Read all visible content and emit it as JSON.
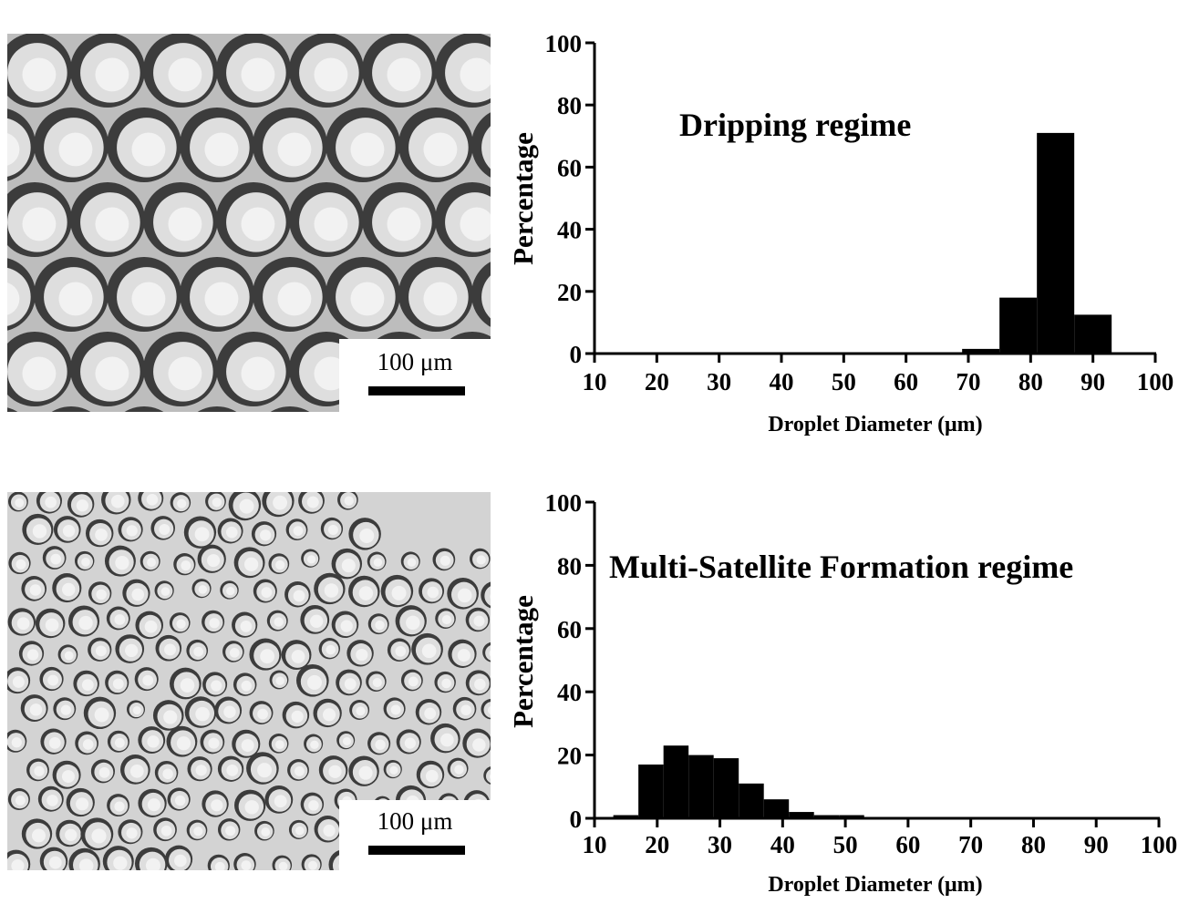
{
  "panels": [
    {
      "micrograph": {
        "scale_label": "100 μm"
      },
      "chart_data": {
        "type": "bar",
        "title": "Dripping regime",
        "xlabel": "Droplet Diameter (μm)",
        "ylabel": "Percentage",
        "xlim": [
          10,
          100
        ],
        "ylim": [
          0,
          100
        ],
        "xticks": [
          10,
          20,
          30,
          40,
          50,
          60,
          70,
          80,
          90,
          100
        ],
        "yticks": [
          0,
          20,
          40,
          60,
          80,
          100
        ],
        "bins": [
          {
            "from": 69,
            "to": 75,
            "value": 1.5
          },
          {
            "from": 75,
            "to": 81,
            "value": 18
          },
          {
            "from": 81,
            "to": 87,
            "value": 71
          },
          {
            "from": 87,
            "to": 93,
            "value": 12.5
          }
        ]
      }
    },
    {
      "micrograph": {
        "scale_label": "100 μm"
      },
      "chart_data": {
        "type": "bar",
        "title": "Multi-Satellite Formation regime",
        "xlabel": "Droplet Diameter (μm)",
        "ylabel": "Percentage",
        "xlim": [
          10,
          100
        ],
        "ylim": [
          0,
          100
        ],
        "xticks": [
          10,
          20,
          30,
          40,
          50,
          60,
          70,
          80,
          90,
          100
        ],
        "yticks": [
          0,
          20,
          40,
          60,
          80,
          100
        ],
        "bins": [
          {
            "from": 13,
            "to": 17,
            "value": 1
          },
          {
            "from": 17,
            "to": 21,
            "value": 17
          },
          {
            "from": 21,
            "to": 25,
            "value": 23
          },
          {
            "from": 25,
            "to": 29,
            "value": 20
          },
          {
            "from": 29,
            "to": 33,
            "value": 19
          },
          {
            "from": 33,
            "to": 37,
            "value": 11
          },
          {
            "from": 37,
            "to": 41,
            "value": 6
          },
          {
            "from": 41,
            "to": 45,
            "value": 2
          },
          {
            "from": 45,
            "to": 49,
            "value": 1
          },
          {
            "from": 49,
            "to": 53,
            "value": 1
          }
        ]
      }
    }
  ]
}
